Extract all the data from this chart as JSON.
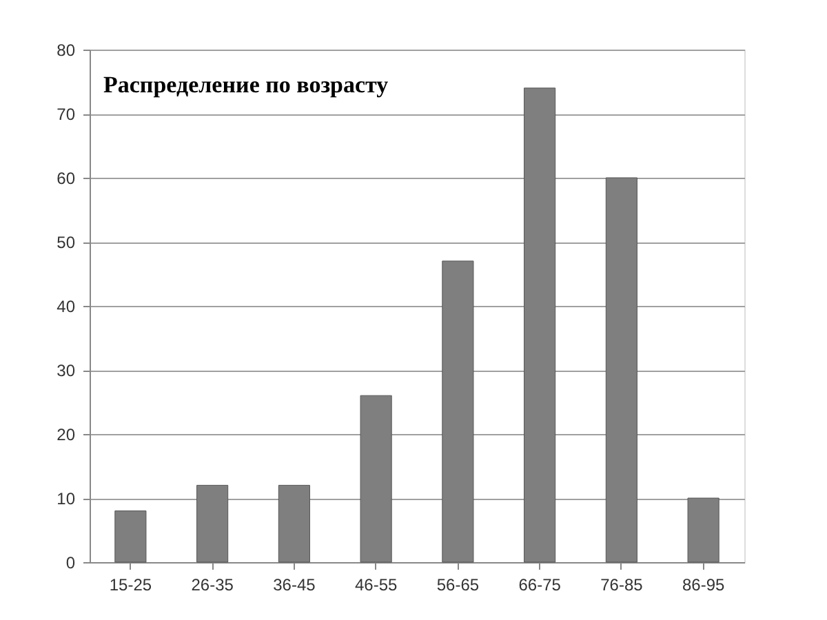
{
  "chart_data": {
    "type": "bar",
    "title": "Распределение по возрасту",
    "categories": [
      "15-25",
      "26-35",
      "36-45",
      "46-55",
      "56-65",
      "66-75",
      "76-85",
      "86-95"
    ],
    "values": [
      8,
      12,
      12,
      26,
      47,
      74,
      60,
      10
    ],
    "color": "#7f7f7f",
    "ylim": [
      0,
      80
    ],
    "yticks": [
      0,
      10,
      20,
      30,
      40,
      50,
      60,
      70,
      80
    ],
    "grid": "y"
  }
}
